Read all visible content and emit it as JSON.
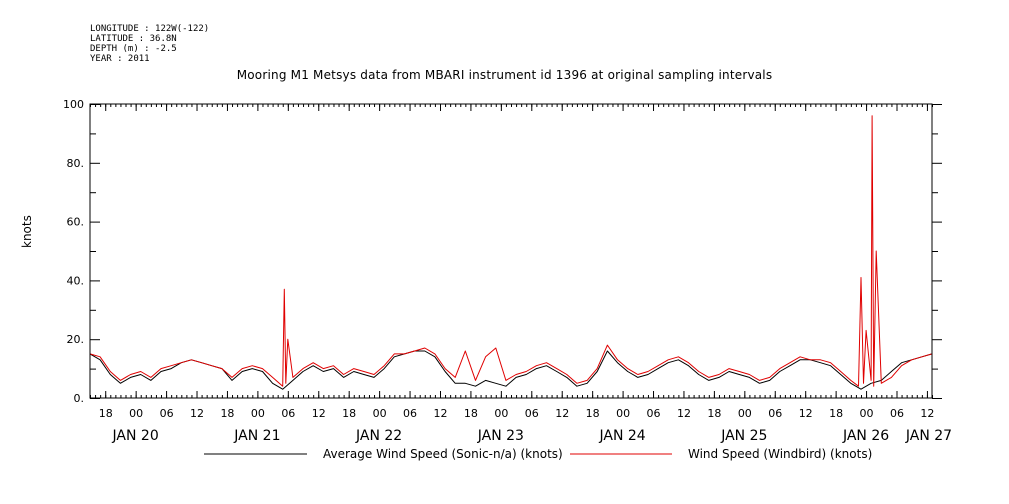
{
  "header": {
    "longitude": "LONGITUDE : 122W(-122)",
    "latitude": "LATITUDE : 36.8N",
    "depth": "DEPTH (m) : -2.5",
    "year": "YEAR : 2011"
  },
  "colors": {
    "average": "#000000",
    "windbird": "#e00000",
    "axis": "#000000"
  },
  "chart_data": {
    "type": "line",
    "title": "Mooring M1 Metsys data from MBARI instrument id 1396 at original sampling intervals",
    "ylabel": "knots",
    "xlabel": "",
    "ylim": [
      0,
      100
    ],
    "yticks": [
      {
        "value": 0,
        "label": "0."
      },
      {
        "value": 20,
        "label": "20."
      },
      {
        "value": 40,
        "label": "40."
      },
      {
        "value": 60,
        "label": "60."
      },
      {
        "value": 80,
        "label": "80."
      },
      {
        "value": 100,
        "label": "100"
      }
    ],
    "xlim_hours": [
      0,
      166
    ],
    "x_origin": "JAN 20 15:00",
    "hour_ticks": [
      {
        "h": 3,
        "label": "18"
      },
      {
        "h": 9,
        "label": "00"
      },
      {
        "h": 15,
        "label": "06"
      },
      {
        "h": 21,
        "label": "12"
      },
      {
        "h": 27,
        "label": "18"
      },
      {
        "h": 33,
        "label": "00"
      },
      {
        "h": 39,
        "label": "06"
      },
      {
        "h": 45,
        "label": "12"
      },
      {
        "h": 51,
        "label": "18"
      },
      {
        "h": 57,
        "label": "00"
      },
      {
        "h": 63,
        "label": "06"
      },
      {
        "h": 69,
        "label": "12"
      },
      {
        "h": 75,
        "label": "18"
      },
      {
        "h": 81,
        "label": "00"
      },
      {
        "h": 87,
        "label": "06"
      },
      {
        "h": 93,
        "label": "12"
      },
      {
        "h": 99,
        "label": "18"
      },
      {
        "h": 105,
        "label": "00"
      },
      {
        "h": 111,
        "label": "06"
      },
      {
        "h": 117,
        "label": "12"
      },
      {
        "h": 123,
        "label": "18"
      },
      {
        "h": 129,
        "label": "00"
      },
      {
        "h": 135,
        "label": "06"
      },
      {
        "h": 141,
        "label": "12"
      },
      {
        "h": 147,
        "label": "18"
      },
      {
        "h": 153,
        "label": "00"
      },
      {
        "h": 159,
        "label": "06"
      },
      {
        "h": 165,
        "label": "12"
      }
    ],
    "day_labels": [
      {
        "h": 9,
        "label": "JAN 20"
      },
      {
        "h": 33,
        "label": "JAN 21"
      },
      {
        "h": 57,
        "label": "JAN 22"
      },
      {
        "h": 81,
        "label": "JAN 23"
      },
      {
        "h": 105,
        "label": "JAN 24"
      },
      {
        "h": 129,
        "label": "JAN 25"
      },
      {
        "h": 153,
        "label": "JAN 26"
      },
      {
        "h": 177,
        "label": "JAN 27"
      }
    ],
    "series": [
      {
        "name": "Average Wind Speed (Sonic-n/a) (knots)",
        "color": "#000000",
        "x": [
          0,
          2,
          4,
          6,
          8,
          10,
          12,
          14,
          16,
          18,
          20,
          22,
          24,
          26,
          28,
          30,
          32,
          34,
          36,
          38,
          40,
          42,
          44,
          46,
          48,
          50,
          52,
          54,
          56,
          58,
          60,
          62,
          64,
          66,
          68,
          70,
          72,
          74,
          76,
          78,
          80,
          82,
          84,
          86,
          88,
          90,
          92,
          94,
          96,
          98,
          100,
          102,
          104,
          106,
          108,
          110,
          112,
          114,
          116,
          118,
          120,
          122,
          124,
          126,
          128,
          130,
          132,
          134,
          136,
          138,
          140,
          142,
          144,
          146,
          148,
          150,
          152,
          154,
          156,
          158,
          160,
          162,
          164,
          166
        ],
        "values": [
          15,
          13,
          8,
          5,
          7,
          8,
          6,
          9,
          10,
          12,
          13,
          12,
          11,
          10,
          6,
          9,
          10,
          9,
          5,
          3,
          6,
          9,
          11,
          9,
          10,
          7,
          9,
          8,
          7,
          10,
          14,
          15,
          16,
          16,
          14,
          9,
          5,
          5,
          4,
          6,
          5,
          4,
          7,
          8,
          10,
          11,
          9,
          7,
          4,
          5,
          9,
          16,
          12,
          9,
          7,
          8,
          10,
          12,
          13,
          11,
          8,
          6,
          7,
          9,
          8,
          7,
          5,
          6,
          9,
          11,
          13,
          13,
          12,
          11,
          8,
          5,
          3,
          5,
          6,
          9,
          12,
          13,
          14,
          15
        ]
      },
      {
        "name": "Wind Speed (Windbird) (knots)",
        "color": "#e00000",
        "x": [
          0,
          2,
          4,
          6,
          8,
          10,
          12,
          14,
          16,
          18,
          20,
          22,
          24,
          26,
          28,
          30,
          32,
          34,
          36,
          38,
          38.3,
          38.6,
          39,
          40,
          42,
          44,
          46,
          48,
          50,
          52,
          54,
          56,
          58,
          60,
          62,
          64,
          66,
          68,
          70,
          72,
          74,
          76,
          78,
          80,
          82,
          84,
          86,
          88,
          90,
          92,
          94,
          96,
          98,
          100,
          102,
          104,
          106,
          108,
          110,
          112,
          114,
          116,
          118,
          120,
          122,
          124,
          126,
          128,
          130,
          132,
          134,
          136,
          138,
          140,
          142,
          144,
          146,
          148,
          150,
          151.5,
          152,
          152.5,
          153,
          154,
          154.2,
          154.5,
          155,
          156,
          158,
          160,
          162,
          164,
          166
        ],
        "values": [
          15,
          14,
          9,
          6,
          8,
          9,
          7,
          10,
          11,
          12,
          13,
          12,
          11,
          10,
          7,
          10,
          11,
          10,
          7,
          4,
          37,
          5,
          20,
          7,
          10,
          12,
          10,
          11,
          8,
          10,
          9,
          8,
          11,
          15,
          15,
          16,
          17,
          15,
          10,
          7,
          16,
          6,
          14,
          17,
          6,
          8,
          9,
          11,
          12,
          10,
          8,
          5,
          6,
          10,
          18,
          13,
          10,
          8,
          9,
          11,
          13,
          14,
          12,
          9,
          7,
          8,
          10,
          9,
          8,
          6,
          7,
          10,
          12,
          14,
          13,
          13,
          12,
          9,
          6,
          4,
          41,
          5,
          23,
          6,
          96,
          4,
          50,
          5,
          7,
          11,
          13,
          14,
          15
        ]
      }
    ]
  }
}
